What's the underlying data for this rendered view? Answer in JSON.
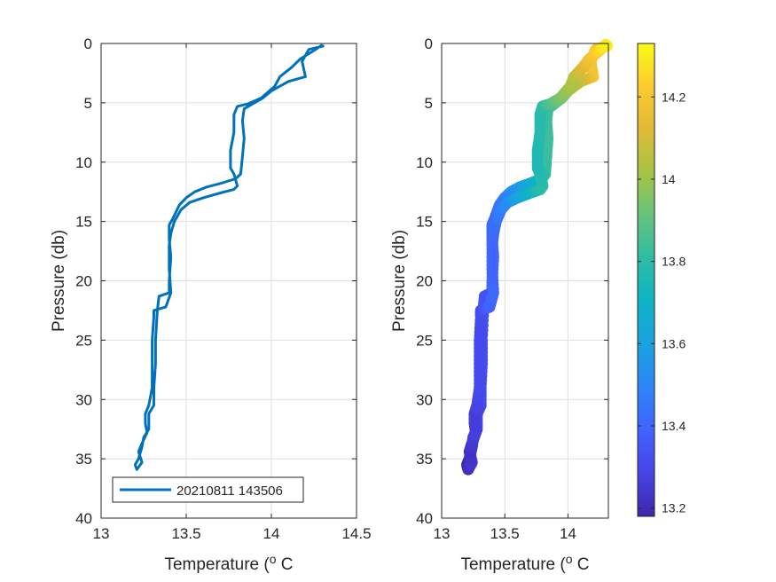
{
  "chart_data": [
    {
      "type": "line",
      "xlabel": "Temperature (",
      "xlabel_sup": "o",
      "xlabel_unit": " C",
      "ylabel": "Pressure (db)",
      "xlim": [
        13,
        14.5
      ],
      "ylim": [
        0,
        40
      ],
      "y_reversed": true,
      "xticks": [
        13,
        13.5,
        14,
        14.5
      ],
      "xtick_labels": [
        "13",
        "13.5",
        "14",
        "14.5"
      ],
      "yticks": [
        0,
        5,
        10,
        15,
        20,
        25,
        30,
        35,
        40
      ],
      "ytick_labels": [
        "0",
        "5",
        "10",
        "15",
        "20",
        "25",
        "30",
        "35",
        "40"
      ],
      "grid": true,
      "legend": {
        "placement": "bottom",
        "entries": [
          "20210811 143506"
        ]
      },
      "series": [
        {
          "name": "20210811 143506",
          "color": "#0072BD",
          "points": [
            [
              14.31,
              0.2
            ],
            [
              14.22,
              0.5
            ],
            [
              14.18,
              1.5
            ],
            [
              14.2,
              2.8
            ],
            [
              14.1,
              3.2
            ],
            [
              14.0,
              4.0
            ],
            [
              13.95,
              4.6
            ],
            [
              13.9,
              5.0
            ],
            [
              13.84,
              5.5
            ],
            [
              13.83,
              6.5
            ],
            [
              13.84,
              8.0
            ],
            [
              13.83,
              9.5
            ],
            [
              13.82,
              11.0
            ],
            [
              13.79,
              11.4
            ],
            [
              13.7,
              11.8
            ],
            [
              13.62,
              12.1
            ],
            [
              13.55,
              12.5
            ],
            [
              13.5,
              13.0
            ],
            [
              13.46,
              13.6
            ],
            [
              13.44,
              14.2
            ],
            [
              13.42,
              14.8
            ],
            [
              13.4,
              15.3
            ],
            [
              13.4,
              16.5
            ],
            [
              13.41,
              18.0
            ],
            [
              13.4,
              20.0
            ],
            [
              13.4,
              21.0
            ],
            [
              13.34,
              21.3
            ],
            [
              13.33,
              22.5
            ],
            [
              13.32,
              25.0
            ],
            [
              13.32,
              27.0
            ],
            [
              13.31,
              29.0
            ],
            [
              13.31,
              30.5
            ],
            [
              13.28,
              31.2
            ],
            [
              13.28,
              32.5
            ],
            [
              13.25,
              33.2
            ],
            [
              13.24,
              34.0
            ],
            [
              13.22,
              35.0
            ],
            [
              13.2,
              35.5
            ],
            [
              13.21,
              35.9
            ],
            [
              13.24,
              35.3
            ],
            [
              13.22,
              34.4
            ],
            [
              13.24,
              33.7
            ],
            [
              13.27,
              32.8
            ],
            [
              13.26,
              32.0
            ],
            [
              13.26,
              31.2
            ],
            [
              13.28,
              30.5
            ],
            [
              13.3,
              29.0
            ],
            [
              13.3,
              27.0
            ],
            [
              13.3,
              25.0
            ],
            [
              13.31,
              23.0
            ],
            [
              13.31,
              22.5
            ],
            [
              13.38,
              22.2
            ],
            [
              13.41,
              21.0
            ],
            [
              13.4,
              19.0
            ],
            [
              13.4,
              17.0
            ],
            [
              13.41,
              16.0
            ],
            [
              13.43,
              15.0
            ],
            [
              13.47,
              14.0
            ],
            [
              13.52,
              13.4
            ],
            [
              13.6,
              13.0
            ],
            [
              13.7,
              12.6
            ],
            [
              13.78,
              12.3
            ],
            [
              13.8,
              12.0
            ],
            [
              13.78,
              11.0
            ],
            [
              13.76,
              10.5
            ],
            [
              13.76,
              9.0
            ],
            [
              13.78,
              7.5
            ],
            [
              13.78,
              6.0
            ],
            [
              13.8,
              5.3
            ],
            [
              13.86,
              5.1
            ],
            [
              13.94,
              4.6
            ],
            [
              14.02,
              3.6
            ],
            [
              14.05,
              2.8
            ],
            [
              14.12,
              2.0
            ],
            [
              14.17,
              1.3
            ],
            [
              14.25,
              0.6
            ],
            [
              14.3,
              0.1
            ]
          ]
        }
      ]
    },
    {
      "type": "scatter",
      "xlabel": "Temperature (",
      "xlabel_sup": "o",
      "xlabel_unit": " C",
      "ylabel": "Pressure (db)",
      "xlim": [
        13,
        14.32
      ],
      "ylim": [
        0,
        40
      ],
      "y_reversed": true,
      "xticks": [
        13,
        13.5,
        14
      ],
      "xtick_labels": [
        "13",
        "13.5",
        "14"
      ],
      "yticks": [
        0,
        5,
        10,
        15,
        20,
        25,
        30,
        35,
        40
      ],
      "ytick_labels": [
        "0",
        "5",
        "10",
        "15",
        "20",
        "25",
        "30",
        "35",
        "40"
      ],
      "grid": true,
      "color_by": "temperature",
      "colorbar": {
        "range": [
          13.18,
          14.33
        ],
        "ticks": [
          13.2,
          13.4,
          13.6,
          13.8,
          14.0,
          14.2
        ],
        "tick_labels": [
          "13.2",
          "13.4",
          "13.6",
          "13.8",
          "14",
          "14.2"
        ],
        "colormap": [
          "#3E26A8",
          "#4744E8",
          "#4163FD",
          "#2D85F9",
          "#1AA2E0",
          "#0EB3C6",
          "#2EBCA5",
          "#66C37B",
          "#A5C445",
          "#E0BA35",
          "#FDC92F",
          "#F9FB15"
        ]
      },
      "source_series": 0
    }
  ]
}
